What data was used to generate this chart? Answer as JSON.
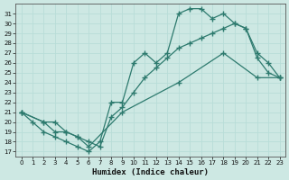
{
  "title": "",
  "xlabel": "Humidex (Indice chaleur)",
  "ylabel": "",
  "bg_color": "#cde8e3",
  "line_color": "#2d7a6e",
  "grid_color": "#b8ddd8",
  "xlim": [
    -0.5,
    23.5
  ],
  "ylim": [
    16.5,
    32.0
  ],
  "yticks": [
    17,
    18,
    19,
    20,
    21,
    22,
    23,
    24,
    25,
    26,
    27,
    28,
    29,
    30,
    31
  ],
  "xticks": [
    0,
    1,
    2,
    3,
    4,
    5,
    6,
    7,
    8,
    9,
    10,
    11,
    12,
    13,
    14,
    15,
    16,
    17,
    18,
    19,
    20,
    21,
    22,
    23
  ],
  "line1_x": [
    0,
    1,
    2,
    3,
    4,
    5,
    6,
    7,
    8,
    9,
    10,
    11,
    12,
    13,
    14,
    15,
    16,
    17,
    18,
    19,
    20,
    21,
    22,
    23
  ],
  "line1_y": [
    21,
    20,
    19,
    18.5,
    18,
    17.5,
    17,
    18,
    22,
    22,
    26,
    27,
    26,
    27,
    31,
    31.5,
    31.5,
    30.5,
    31,
    30,
    29.5,
    26.5,
    25,
    24.5
  ],
  "line2_x": [
    0,
    2,
    3,
    4,
    5,
    6,
    7,
    8,
    9,
    10,
    11,
    12,
    13,
    14,
    15,
    16,
    17,
    18,
    19,
    20,
    21,
    22,
    23
  ],
  "line2_y": [
    21,
    20,
    20,
    19,
    18.5,
    18,
    17.5,
    20.5,
    21.5,
    23,
    24.5,
    25.5,
    26.5,
    27.5,
    28,
    28.5,
    29,
    29.5,
    30,
    29.5,
    27,
    26,
    24.5
  ],
  "line3_x": [
    0,
    2,
    3,
    4,
    5,
    6,
    9,
    14,
    18,
    21,
    23
  ],
  "line3_y": [
    21,
    20,
    19,
    19,
    18.5,
    17.5,
    21,
    24,
    27,
    24.5,
    24.5
  ]
}
